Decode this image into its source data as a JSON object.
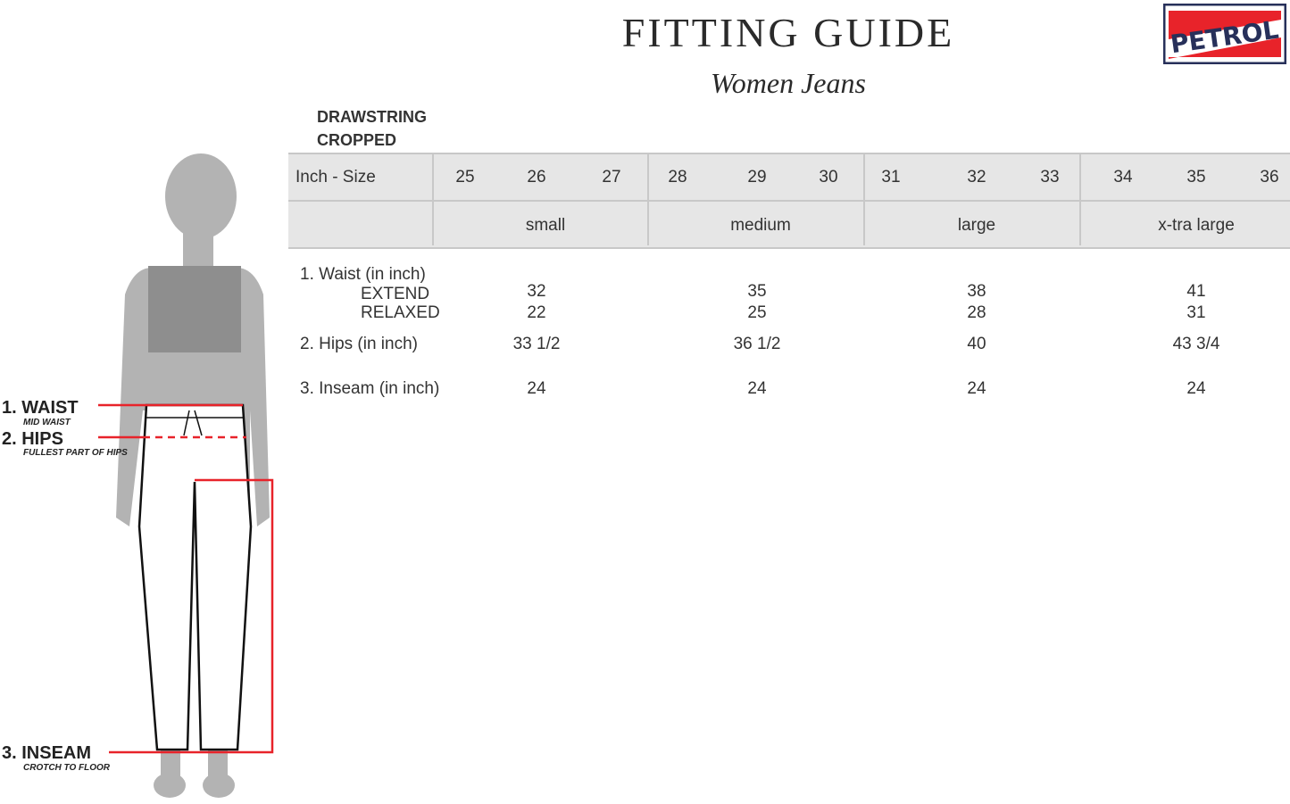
{
  "header": {
    "title": "FITTING GUIDE",
    "subtitle": "Women Jeans",
    "logo_text": "PETROL"
  },
  "style": {
    "line1": "DRAWSTRING",
    "line2": "CROPPED"
  },
  "table": {
    "size_label": "Inch - Size",
    "sizes": [
      "25",
      "26",
      "27",
      "28",
      "29",
      "30",
      "31",
      "32",
      "33",
      "34",
      "35",
      "36"
    ],
    "groups": [
      "small",
      "medium",
      "large",
      "x-tra large"
    ],
    "rows": {
      "waist_label": "1. Waist (in inch)",
      "extend_label": "EXTEND",
      "relaxed_label": "RELAXED",
      "extend": [
        "32",
        "35",
        "38",
        "41"
      ],
      "relaxed": [
        "22",
        "25",
        "28",
        "31"
      ],
      "hips_label": "2. Hips (in inch)",
      "hips": [
        "33 1/2",
        "36 1/2",
        "40",
        "43 3/4"
      ],
      "inseam_label": "3. Inseam (in inch)",
      "inseam": [
        "24",
        "24",
        "24",
        "24"
      ]
    }
  },
  "figure": {
    "waist": "1. WAIST",
    "waist_sub": "MID WAIST",
    "hips": "2. HIPS",
    "hips_sub": "FULLEST PART OF HIPS",
    "inseam": "3. INSEAM",
    "inseam_sub": "CROTCH TO FLOOR"
  },
  "colors": {
    "accent": "#e8232a",
    "header_bg": "#e6e6e6",
    "logo_navy": "#27305a",
    "silhouette": "#b3b3b3"
  }
}
